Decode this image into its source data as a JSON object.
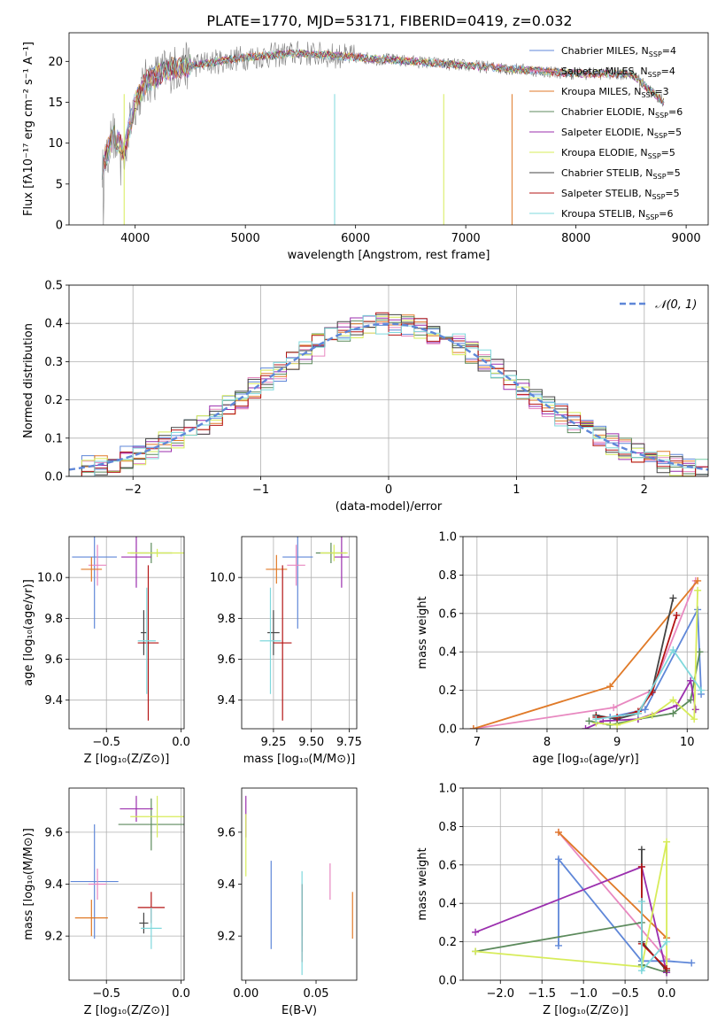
{
  "figure": {
    "title": "PLATE=1770, MJD=53171, FIBERID=0419, z=0.032"
  },
  "series": [
    {
      "name": "Chabrier MILES",
      "nssp": "4",
      "color": "#5f87d8"
    },
    {
      "name": "Salpeter MILES",
      "nssp": "4",
      "color": "#e888c0"
    },
    {
      "name": "Kroupa MILES",
      "nssp": "3",
      "color": "#e07a28"
    },
    {
      "name": "Chabrier ELODIE",
      "nssp": "6",
      "color": "#5c8a5c"
    },
    {
      "name": "Salpeter ELODIE",
      "nssp": "5",
      "color": "#9b2fae"
    },
    {
      "name": "Kroupa ELODIE",
      "nssp": "5",
      "color": "#d7ec5a"
    },
    {
      "name": "Chabrier STELIB",
      "nssp": "5",
      "color": "#444444"
    },
    {
      "name": "Salpeter STELIB",
      "nssp": "5",
      "color": "#b41414"
    },
    {
      "name": "Kroupa STELIB",
      "nssp": "6",
      "color": "#7fd8dc"
    }
  ],
  "chart_data": [
    {
      "id": "spectrum",
      "type": "line",
      "xlabel": "wavelength [Angstrom, rest frame]",
      "ylabel": "Flux [fλ10⁻¹⁷ erg cm⁻² s⁻¹ A⁻¹]",
      "xlim": [
        3400,
        9200
      ],
      "ylim": [
        0,
        23.5
      ],
      "xticks": [
        4000,
        5000,
        6000,
        7000,
        8000,
        9000
      ],
      "yticks": [
        0,
        5,
        10,
        15,
        20
      ],
      "grid": false,
      "legend": "top-right",
      "data_envelope": {
        "x": [
          3700,
          3800,
          3900,
          4000,
          4100,
          4300,
          4500,
          5000,
          5500,
          6000,
          6500,
          7000,
          7500,
          8000,
          8500,
          8800
        ],
        "y": [
          7,
          11,
          9,
          15,
          17.5,
          19,
          19.5,
          20.5,
          21,
          20.5,
          20,
          19.5,
          19,
          18.5,
          18.5,
          15
        ]
      }
    },
    {
      "id": "residuals",
      "type": "histogram",
      "xlabel": "(data-model)/error",
      "ylabel": "Normed distribution",
      "xlim": [
        -2.5,
        2.5
      ],
      "ylim": [
        0,
        0.5
      ],
      "xticks": [
        -2,
        -1,
        0,
        1,
        2
      ],
      "yticks": [
        0.0,
        0.1,
        0.2,
        0.3,
        0.4,
        0.5
      ],
      "grid": true,
      "legend": "top-right",
      "reference_label": "𝒩(0, 1)",
      "reference_color": "#5f87d8"
    },
    {
      "id": "age-vs-z",
      "type": "scatter",
      "xlabel": "Z [log₁₀(Z/Z⊙)]",
      "ylabel": "age  [log₁₀(age/yr)]",
      "xlim": [
        -0.75,
        0.02
      ],
      "ylim": [
        9.26,
        10.2
      ],
      "xticks": [
        -0.5,
        0.0
      ],
      "yticks": [
        9.4,
        9.6,
        9.8,
        10.0
      ],
      "grid": true,
      "points": [
        {
          "x": -0.58,
          "y": 10.1,
          "xerr": 0.15,
          "yerr": 0.35,
          "color": "#5f87d8"
        },
        {
          "x": -0.56,
          "y": 10.06,
          "xerr": 0.06,
          "yerr": 0.1,
          "color": "#e888c0"
        },
        {
          "x": -0.6,
          "y": 10.04,
          "xerr": 0.07,
          "yerr": 0.06,
          "color": "#e07a28"
        },
        {
          "x": -0.2,
          "y": 10.12,
          "xerr": 0.14,
          "yerr": 0.05,
          "color": "#5c8a5c"
        },
        {
          "x": -0.3,
          "y": 10.1,
          "xerr": 0.1,
          "yerr": 0.15,
          "color": "#9b2fae"
        },
        {
          "x": -0.16,
          "y": 10.12,
          "xerr": 0.2,
          "yerr": 0.02,
          "color": "#d7ec5a"
        },
        {
          "x": -0.25,
          "y": 9.73,
          "xerr": 0.02,
          "yerr": 0.11,
          "color": "#444444"
        },
        {
          "x": -0.22,
          "y": 9.68,
          "xerr": 0.07,
          "yerr": 0.38,
          "color": "#b41414"
        },
        {
          "x": -0.23,
          "y": 9.69,
          "xerr": 0.06,
          "yerr": 0.26,
          "color": "#7fd8dc"
        }
      ]
    },
    {
      "id": "age-vs-mass",
      "type": "scatter",
      "xlabel": "mass [log₁₀(M/M⊙)]",
      "ylabel": "",
      "xlim": [
        9.04,
        9.8
      ],
      "ylim": [
        9.26,
        10.2
      ],
      "xticks": [
        9.25,
        9.5,
        9.75
      ],
      "yticks": [
        9.4,
        9.6,
        9.8,
        10.0
      ],
      "grid": true,
      "points": [
        {
          "x": 9.41,
          "y": 10.1,
          "xerr": 0.1,
          "yerr": 0.35,
          "color": "#5f87d8"
        },
        {
          "x": 9.4,
          "y": 10.06,
          "xerr": 0.06,
          "yerr": 0.1,
          "color": "#e888c0"
        },
        {
          "x": 9.27,
          "y": 10.04,
          "xerr": 0.07,
          "yerr": 0.07,
          "color": "#e07a28"
        },
        {
          "x": 9.63,
          "y": 10.12,
          "xerr": 0.1,
          "yerr": 0.05,
          "color": "#5c8a5c"
        },
        {
          "x": 9.7,
          "y": 10.1,
          "xerr": 0.05,
          "yerr": 0.15,
          "color": "#9b2fae"
        },
        {
          "x": 9.65,
          "y": 10.12,
          "xerr": 0.09,
          "yerr": 0.04,
          "color": "#d7ec5a"
        },
        {
          "x": 9.25,
          "y": 9.73,
          "xerr": 0.04,
          "yerr": 0.11,
          "color": "#444444"
        },
        {
          "x": 9.31,
          "y": 9.68,
          "xerr": 0.06,
          "yerr": 0.38,
          "color": "#b41414"
        },
        {
          "x": 9.23,
          "y": 9.69,
          "xerr": 0.07,
          "yerr": 0.26,
          "color": "#7fd8dc"
        }
      ]
    },
    {
      "id": "weight-vs-age",
      "type": "line",
      "xlabel": "age  [log₁₀(age/yr)]",
      "ylabel": "mass weight",
      "xlim": [
        6.8,
        10.3
      ],
      "ylim": [
        0,
        1.0
      ],
      "xticks": [
        7,
        8,
        9,
        10
      ],
      "yticks": [
        0.0,
        0.2,
        0.4,
        0.6,
        0.8,
        1.0
      ],
      "grid": true,
      "series_points": [
        {
          "color": "#5f87d8",
          "x": [
            8.9,
            9.4,
            10.15,
            10.2
          ],
          "y": [
            0.06,
            0.1,
            0.62,
            0.18
          ]
        },
        {
          "color": "#e888c0",
          "x": [
            6.95,
            8.95,
            9.5,
            10.12
          ],
          "y": [
            0.0,
            0.11,
            0.2,
            0.77
          ]
        },
        {
          "color": "#e07a28",
          "x": [
            6.95,
            8.9,
            10.15
          ],
          "y": [
            0.0,
            0.22,
            0.77
          ]
        },
        {
          "color": "#5c8a5c",
          "x": [
            8.6,
            8.9,
            9.3,
            9.8,
            10.05,
            10.18
          ],
          "y": [
            0.04,
            0.02,
            0.05,
            0.08,
            0.15,
            0.4
          ]
        },
        {
          "color": "#9b2fae",
          "x": [
            8.55,
            8.8,
            9.3,
            9.85,
            10.05,
            10.12
          ],
          "y": [
            0.0,
            0.04,
            0.05,
            0.12,
            0.25,
            0.1
          ]
        },
        {
          "color": "#d7ec5a",
          "x": [
            8.7,
            9.0,
            9.5,
            9.8,
            10.1,
            10.15
          ],
          "y": [
            0.03,
            0.02,
            0.07,
            0.15,
            0.05,
            0.72
          ]
        },
        {
          "color": "#444444",
          "x": [
            8.7,
            9.0,
            9.3,
            9.5,
            9.8
          ],
          "y": [
            0.07,
            0.05,
            0.08,
            0.2,
            0.68
          ]
        },
        {
          "color": "#b41414",
          "x": [
            8.7,
            9.0,
            9.3,
            9.5,
            9.85
          ],
          "y": [
            0.06,
            0.06,
            0.09,
            0.19,
            0.59
          ]
        },
        {
          "color": "#7fd8dc",
          "x": [
            8.7,
            9.3,
            9.8,
            10.2
          ],
          "y": [
            0.05,
            0.08,
            0.41,
            0.2
          ]
        }
      ]
    },
    {
      "id": "mass-vs-z",
      "type": "scatter",
      "xlabel": "Z [log₁₀(Z/Z⊙)]",
      "ylabel": "mass [log₁₀(M/M⊙)]",
      "xlim": [
        -0.75,
        0.02
      ],
      "ylim": [
        9.03,
        9.77
      ],
      "xticks": [
        -0.5,
        0.0
      ],
      "yticks": [
        9.2,
        9.4,
        9.6
      ],
      "grid": true,
      "points": [
        {
          "x": -0.58,
          "y": 9.41,
          "xerr": 0.16,
          "yerr": 0.22,
          "color": "#5f87d8"
        },
        {
          "x": -0.56,
          "y": 9.4,
          "xerr": 0.06,
          "yerr": 0.06,
          "color": "#e888c0"
        },
        {
          "x": -0.6,
          "y": 9.27,
          "xerr": 0.11,
          "yerr": 0.07,
          "color": "#e07a28"
        },
        {
          "x": -0.2,
          "y": 9.63,
          "xerr": 0.22,
          "yerr": 0.1,
          "color": "#5c8a5c"
        },
        {
          "x": -0.3,
          "y": 9.69,
          "xerr": 0.11,
          "yerr": 0.05,
          "color": "#9b2fae"
        },
        {
          "x": -0.16,
          "y": 9.66,
          "xerr": 0.18,
          "yerr": 0.08,
          "color": "#d7ec5a"
        },
        {
          "x": -0.25,
          "y": 9.25,
          "xerr": 0.03,
          "yerr": 0.04,
          "color": "#444444"
        },
        {
          "x": -0.2,
          "y": 9.31,
          "xerr": 0.09,
          "yerr": 0.06,
          "color": "#b41414"
        },
        {
          "x": -0.2,
          "y": 9.23,
          "xerr": 0.07,
          "yerr": 0.08,
          "color": "#7fd8dc"
        }
      ]
    },
    {
      "id": "mass-vs-ebv",
      "type": "scatter",
      "xlabel": "E(B-V)",
      "ylabel": "",
      "xlim": [
        -0.003,
        0.079
      ],
      "ylim": [
        9.03,
        9.77
      ],
      "xticks": [
        0.0,
        0.05
      ],
      "yticks": [
        9.2,
        9.4,
        9.6
      ],
      "grid": false,
      "points": [
        {
          "x": 0.018,
          "y": 9.32,
          "yerr": 0.17,
          "color": "#5f87d8"
        },
        {
          "x": 0.06,
          "y": 9.41,
          "yerr": 0.07,
          "color": "#e888c0"
        },
        {
          "x": 0.076,
          "y": 9.28,
          "yerr": 0.09,
          "color": "#e07a28"
        },
        {
          "x": 0.04,
          "y": 9.3,
          "yerr": 0.1,
          "color": "#5c8a5c"
        },
        {
          "x": 0.0,
          "y": 9.66,
          "yerr": 0.08,
          "color": "#9b2fae"
        },
        {
          "x": 0.0,
          "y": 9.55,
          "yerr": 0.12,
          "color": "#d7ec5a"
        },
        {
          "x": 0.04,
          "y": 9.27,
          "yerr": 0.13,
          "color": "#444444"
        },
        {
          "x": 0.04,
          "y": 9.25,
          "yerr": 0.15,
          "color": "#b41414"
        },
        {
          "x": 0.04,
          "y": 9.25,
          "yerr": 0.2,
          "color": "#7fd8dc"
        }
      ]
    },
    {
      "id": "weight-vs-z",
      "type": "line",
      "xlabel": "Z [log₁₀(Z/Z⊙)]",
      "ylabel": "mass weight",
      "xlim": [
        -2.45,
        0.5
      ],
      "ylim": [
        0,
        1.0
      ],
      "xticks": [
        -2.0,
        -1.5,
        -1.0,
        -0.5,
        0.0
      ],
      "yticks": [
        0.0,
        0.2,
        0.4,
        0.6,
        0.8,
        1.0
      ],
      "grid": true,
      "series_points": [
        {
          "color": "#5f87d8",
          "x": [
            -1.3,
            -1.3,
            -0.3,
            0.0,
            0.3
          ],
          "y": [
            0.18,
            0.63,
            0.1,
            0.1,
            0.09
          ]
        },
        {
          "color": "#e888c0",
          "x": [
            -1.3,
            0.0
          ],
          "y": [
            0.77,
            0.11
          ]
        },
        {
          "color": "#e07a28",
          "x": [
            -1.3,
            0.0
          ],
          "y": [
            0.77,
            0.22
          ]
        },
        {
          "color": "#5c8a5c",
          "x": [
            -2.3,
            -0.3,
            -0.3,
            0.0
          ],
          "y": [
            0.15,
            0.3,
            0.08,
            0.04
          ]
        },
        {
          "color": "#9b2fae",
          "x": [
            -2.3,
            -0.3,
            0.0
          ],
          "y": [
            0.25,
            0.59,
            0.04
          ]
        },
        {
          "color": "#d7ec5a",
          "x": [
            -2.3,
            -0.3,
            0.0,
            0.0
          ],
          "y": [
            0.15,
            0.07,
            0.72,
            0.05
          ]
        },
        {
          "color": "#444444",
          "x": [
            -0.3,
            -0.3,
            0.0
          ],
          "y": [
            0.68,
            0.2,
            0.05
          ]
        },
        {
          "color": "#b41414",
          "x": [
            -0.3,
            -0.3,
            0.0
          ],
          "y": [
            0.59,
            0.19,
            0.06
          ]
        },
        {
          "color": "#7fd8dc",
          "x": [
            -0.3,
            -0.3,
            0.0
          ],
          "y": [
            0.41,
            0.05,
            0.2
          ]
        }
      ]
    }
  ]
}
